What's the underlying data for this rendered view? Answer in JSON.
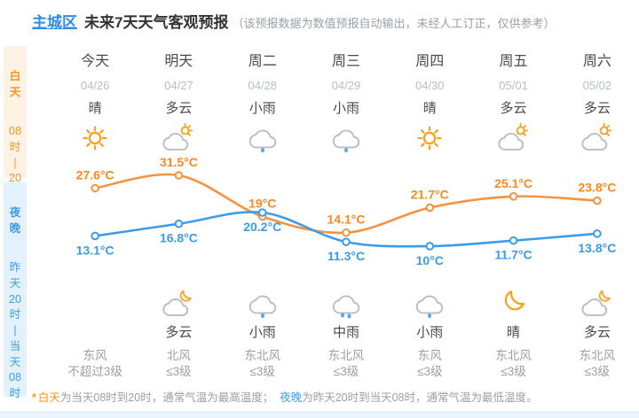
{
  "header": {
    "region": "主城区",
    "title": "未来7天天气客观预报",
    "subtitle": "（该预报数据为数值预报自动输出，未经人工订正，仅供参考）"
  },
  "sidebar": {
    "day": {
      "label_lines": [
        "白",
        "天"
      ],
      "time_lines": [
        "08",
        "时",
        "|",
        "20",
        "时"
      ]
    },
    "night": {
      "label_lines": [
        "夜",
        "晚"
      ],
      "time_lines": [
        "昨",
        "天",
        "20",
        "时",
        "|",
        "当",
        "天",
        "08",
        "时"
      ]
    }
  },
  "columns": [
    {
      "name": "今天",
      "date": "04/26",
      "day_text": "晴",
      "day_icon": "sun",
      "high": 27.6,
      "high_label": "27.6°C",
      "night_icon": "",
      "night_text": "",
      "low": 13.1,
      "low_label": "13.1°C",
      "wind_dir": "东风",
      "wind_scale": "不超过3级"
    },
    {
      "name": "明天",
      "date": "04/27",
      "day_text": "多云",
      "day_icon": "cloud-sun",
      "high": 31.5,
      "high_label": "31.5°C",
      "night_icon": "cloud-moon",
      "night_text": "多云",
      "low": 16.8,
      "low_label": "16.8°C",
      "wind_dir": "北风",
      "wind_scale": "≤3级"
    },
    {
      "name": "周二",
      "date": "04/28",
      "day_text": "小雨",
      "day_icon": "cloud-rain1",
      "high": 19,
      "high_label": "19°C",
      "night_icon": "cloud-rain1",
      "night_text": "小雨",
      "low": 20.2,
      "low_label": "20.2°C",
      "wind_dir": "东北风",
      "wind_scale": "≤3级"
    },
    {
      "name": "周三",
      "date": "04/29",
      "day_text": "小雨",
      "day_icon": "cloud-rain1",
      "high": 14.1,
      "high_label": "14.1°C",
      "night_icon": "cloud-rain2",
      "night_text": "中雨",
      "low": 11.3,
      "low_label": "11.3°C",
      "wind_dir": "东北风",
      "wind_scale": "≤3级"
    },
    {
      "name": "周四",
      "date": "04/30",
      "day_text": "晴",
      "day_icon": "sun",
      "high": 21.7,
      "high_label": "21.7°C",
      "night_icon": "cloud-rain1",
      "night_text": "小雨",
      "low": 10,
      "low_label": "10°C",
      "wind_dir": "东风",
      "wind_scale": "≤3级"
    },
    {
      "name": "周五",
      "date": "05/01",
      "day_text": "多云",
      "day_icon": "cloud-sun",
      "high": 25.1,
      "high_label": "25.1°C",
      "night_icon": "moon",
      "night_text": "晴",
      "low": 11.7,
      "low_label": "11.7°C",
      "wind_dir": "东北风",
      "wind_scale": "≤3级"
    },
    {
      "name": "周六",
      "date": "05/02",
      "day_text": "多云",
      "day_icon": "cloud-sun",
      "high": 23.8,
      "high_label": "23.8°C",
      "night_icon": "cloud-moon",
      "night_text": "多云",
      "low": 13.8,
      "low_label": "13.8°C",
      "wind_dir": "东北风",
      "wind_scale": "≤3级"
    }
  ],
  "chart_data": {
    "type": "line",
    "categories": [
      "今天",
      "明天",
      "周二",
      "周三",
      "周四",
      "周五",
      "周六"
    ],
    "series": [
      {
        "name": "白天最高气温",
        "color": "#f79240",
        "values": [
          27.6,
          31.5,
          19,
          14.1,
          21.7,
          25.1,
          23.8
        ]
      },
      {
        "name": "夜晚最低气温",
        "color": "#3b9de8",
        "values": [
          13.1,
          16.8,
          20.2,
          11.3,
          10,
          11.7,
          13.8
        ]
      }
    ],
    "unit": "°C",
    "grid": false,
    "legend": "none"
  },
  "footer": {
    "mark": "*",
    "day_term": "白天",
    "day_text": "为当天08时到20时，通常气温为最高温度；",
    "night_term": "夜晚",
    "night_text": "为昨天20时到当天08时，通常气温为最低温度。"
  },
  "colors": {
    "accent_orange": "#f7941e",
    "accent_blue": "#3b9de8",
    "high_line": "#f79240",
    "low_line": "#3b9de8",
    "label_high": "#f78a20",
    "label_low": "#3b9de8"
  }
}
